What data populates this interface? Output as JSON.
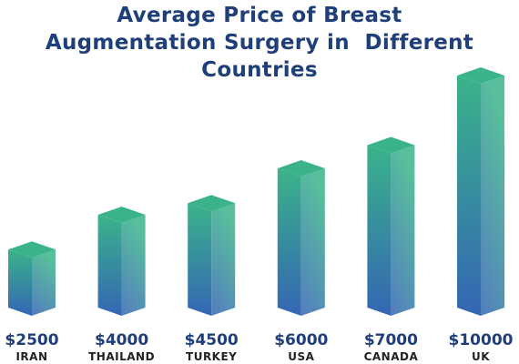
{
  "chart_data": {
    "type": "bar3d",
    "title": "Average Price of Breast Augmentation Surgery in  Different Countries",
    "categories": [
      "IRAN",
      "THAILAND",
      "TURKEY",
      "USA",
      "CANADA",
      "UK"
    ],
    "values": [
      2500,
      4000,
      4500,
      6000,
      7000,
      10000
    ],
    "value_labels": [
      "$2500",
      "$4000",
      "$4500",
      "$6000",
      "$7000",
      "$10000"
    ],
    "colors": [
      "#3466b4",
      "#3ab38a"
    ]
  }
}
